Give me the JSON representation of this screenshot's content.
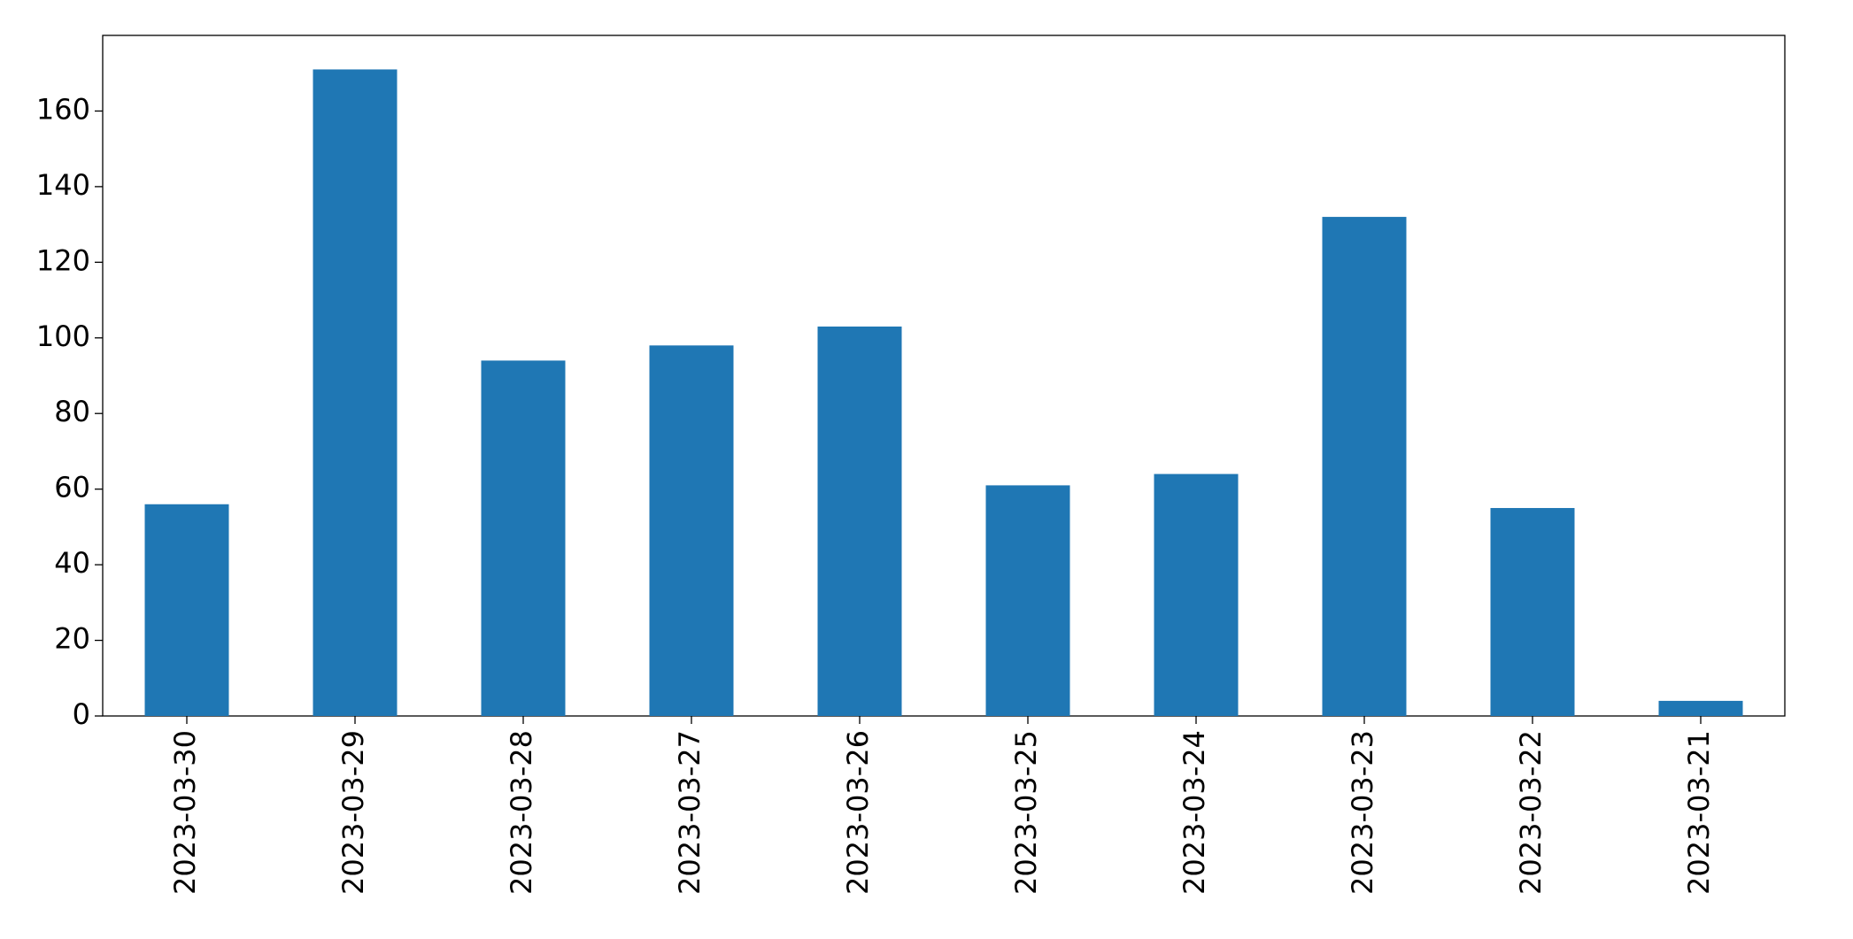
{
  "chart_data": {
    "type": "bar",
    "categories": [
      "2023-03-30",
      "2023-03-29",
      "2023-03-28",
      "2023-03-27",
      "2023-03-26",
      "2023-03-25",
      "2023-03-24",
      "2023-03-23",
      "2023-03-22",
      "2023-03-21"
    ],
    "values": [
      56,
      171,
      94,
      98,
      103,
      61,
      64,
      132,
      55,
      4
    ],
    "color": "#1f77b4",
    "ylim": [
      0,
      180
    ],
    "yticks": [
      0,
      20,
      40,
      60,
      80,
      100,
      120,
      140,
      160
    ],
    "grid": false
  }
}
